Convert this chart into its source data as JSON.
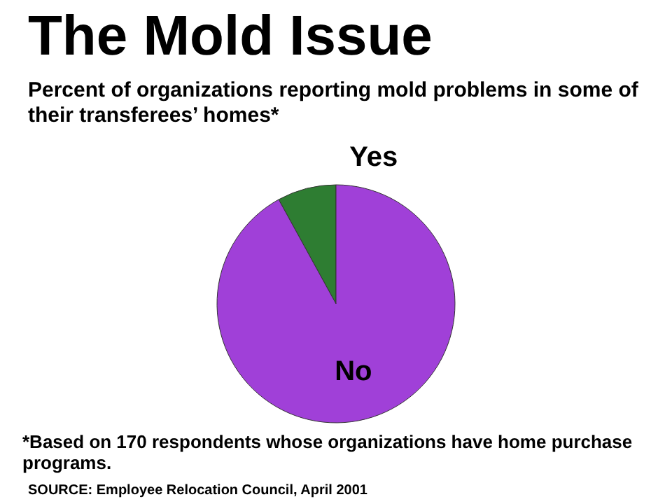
{
  "chart_data": {
    "type": "pie",
    "title": "The Mold Issue",
    "subtitle": "Percent of organizations reporting mold problems in some of their transferees’ homes*",
    "categories": [
      "Yes",
      "No"
    ],
    "values": [
      8,
      92
    ],
    "colors": [
      "#2e7d32",
      "#a040d8"
    ],
    "annotations": [
      "*Based on 170 respondents whose organizations have home purchase programs.",
      "SOURCE: Employee Relocation Council, April 2001"
    ]
  }
}
